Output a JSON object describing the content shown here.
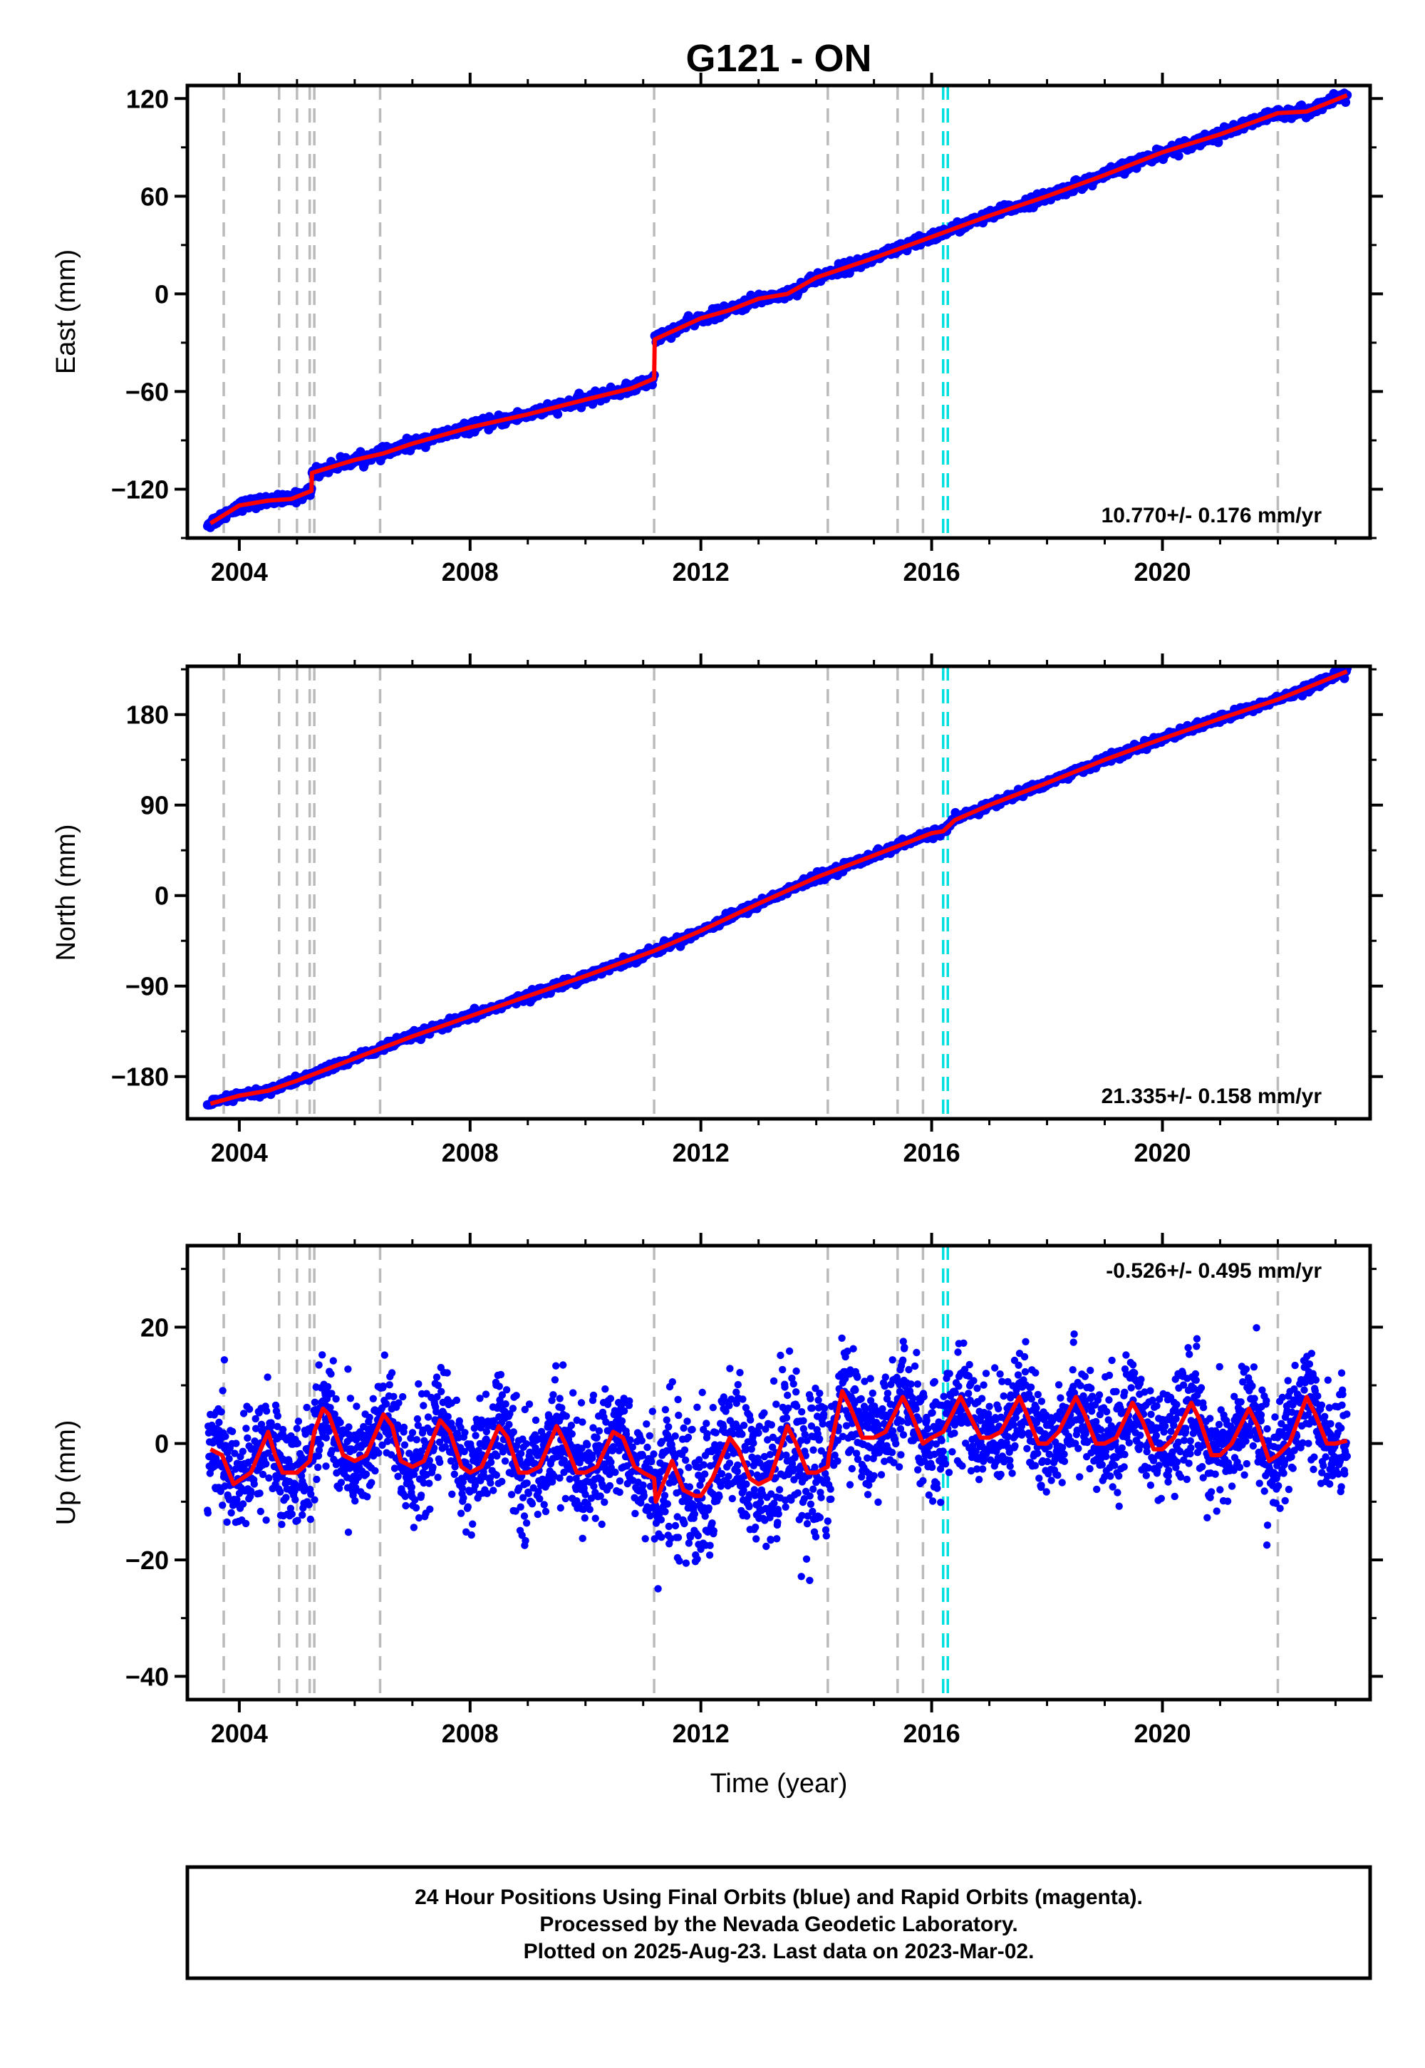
{
  "chart_data": {
    "type": "scatter",
    "title": "G121 - ON",
    "xlabel": "Time (year)",
    "xlim": [
      2003.1,
      2023.6
    ],
    "x_ticks": [
      "2004",
      "2008",
      "2012",
      "2016",
      "2020"
    ],
    "grid": false,
    "event_lines": {
      "gray_dashed": [
        2003.73,
        2004.69,
        2005.0,
        2005.22,
        2005.3,
        2006.44,
        2011.19,
        2014.2,
        2015.41,
        2015.85,
        2022.0
      ],
      "cyan_dashed": [
        2016.2,
        2016.28
      ]
    },
    "colors": {
      "final_orbits": "#0000ff",
      "model": "#ff0000",
      "events": "#bbbbbb",
      "events_alt": "#00e0e0"
    },
    "panels": [
      {
        "name": "east",
        "ylabel": "East (mm)",
        "ylim": [
          -150,
          128
        ],
        "y_ticks": [
          "−120",
          "−60",
          "0",
          "60",
          "120"
        ],
        "rate_label": "10.770+/- 0.176 mm/yr",
        "model": {
          "x": [
            2003.5,
            2004.0,
            2004.5,
            2004.9,
            2005.25,
            2005.26,
            2006.0,
            2006.5,
            2007.0,
            2008.0,
            2009.0,
            2010.0,
            2010.8,
            2011.19,
            2011.2,
            2012.0,
            2012.5,
            2013.0,
            2013.5,
            2014.0,
            2015.0,
            2016.0,
            2017.0,
            2018.0,
            2019.0,
            2020.0,
            2021.0,
            2022.0,
            2022.5,
            2023.2
          ],
          "y": [
            -141,
            -130,
            -127,
            -126,
            -121,
            -110,
            -102,
            -98,
            -92,
            -82,
            -74,
            -65,
            -58,
            -52,
            -28,
            -15,
            -10,
            -3,
            0,
            10,
            22,
            35,
            48,
            60,
            73,
            87,
            98,
            111,
            112,
            122
          ]
        }
      },
      {
        "name": "north",
        "ylabel": "North (mm)",
        "ylim": [
          -222,
          228
        ],
        "y_ticks": [
          "−180",
          "−90",
          "0",
          "90",
          "180"
        ],
        "rate_label": "21.335+/- 0.158 mm/yr",
        "model": {
          "x": [
            2003.5,
            2004.0,
            2004.5,
            2005.0,
            2006.0,
            2007.0,
            2008.0,
            2009.0,
            2010.0,
            2011.19,
            2012.0,
            2013.0,
            2014.0,
            2015.0,
            2016.0,
            2016.2,
            2016.4,
            2017.0,
            2018.0,
            2019.0,
            2020.0,
            2021.0,
            2022.0,
            2023.2
          ],
          "y": [
            -207,
            -199,
            -194,
            -184,
            -162,
            -140,
            -120,
            -100,
            -80,
            -55,
            -35,
            -8,
            18,
            40,
            62,
            64,
            75,
            90,
            112,
            135,
            156,
            176,
            195,
            223
          ]
        }
      },
      {
        "name": "up",
        "ylabel": "Up (mm)",
        "ylim": [
          -44,
          34
        ],
        "y_ticks": [
          "−40",
          "−20",
          "0",
          "20"
        ],
        "rate_label": "-0.526+/- 0.495 mm/yr",
        "model": {
          "x": [
            2003.5,
            2003.7,
            2003.9,
            2004.2,
            2004.5,
            2004.62,
            2004.75,
            2005.0,
            2005.22,
            2005.3,
            2005.45,
            2005.55,
            2005.8,
            2006.0,
            2006.2,
            2006.5,
            2006.65,
            2006.8,
            2007.0,
            2007.2,
            2007.48,
            2007.65,
            2007.85,
            2008.0,
            2008.2,
            2008.5,
            2008.65,
            2008.85,
            2009.0,
            2009.2,
            2009.5,
            2009.65,
            2009.85,
            2010.0,
            2010.2,
            2010.48,
            2010.65,
            2010.85,
            2011.0,
            2011.19,
            2011.22,
            2011.5,
            2011.7,
            2011.9,
            2012.0,
            2012.2,
            2012.5,
            2012.65,
            2012.85,
            2013.0,
            2013.2,
            2013.5,
            2013.65,
            2013.85,
            2014.0,
            2014.2,
            2014.22,
            2014.45,
            2014.6,
            2014.8,
            2015.0,
            2015.2,
            2015.5,
            2015.65,
            2015.85,
            2016.0,
            2016.2,
            2016.5,
            2016.65,
            2016.85,
            2017.0,
            2017.2,
            2017.52,
            2017.65,
            2017.85,
            2018.0,
            2018.2,
            2018.5,
            2018.65,
            2018.85,
            2019.0,
            2019.2,
            2019.48,
            2019.65,
            2019.85,
            2020.0,
            2020.2,
            2020.5,
            2020.65,
            2020.85,
            2021.0,
            2021.2,
            2021.5,
            2021.65,
            2021.85,
            2022.0,
            2022.2,
            2022.5,
            2022.65,
            2022.85,
            2023.0,
            2023.2
          ],
          "y": [
            -1,
            -2,
            -7,
            -5,
            2,
            -2,
            -5,
            -5,
            -3,
            2,
            6,
            5,
            -2,
            -3,
            -2,
            5,
            3,
            -3,
            -4,
            -3,
            4,
            2,
            -4,
            -5,
            -4,
            3,
            1,
            -5,
            -5,
            -4,
            3,
            0,
            -5,
            -5,
            -4,
            2,
            1,
            -4,
            -5,
            -6,
            -10,
            -3,
            -8,
            -9,
            -9,
            -6,
            1,
            -1,
            -6,
            -7,
            -6,
            3,
            0,
            -5,
            -5,
            -4,
            -2,
            9,
            6,
            1,
            1,
            2,
            8,
            5,
            0,
            1,
            2,
            8,
            5,
            1,
            1,
            2,
            8,
            5,
            0,
            0,
            2,
            8,
            5,
            0,
            0,
            1,
            7,
            4,
            -1,
            -1,
            1,
            7,
            4,
            -2,
            -2,
            0,
            6,
            3,
            -3,
            -2,
            0,
            8,
            5,
            0,
            0,
            0.5
          ]
        }
      }
    ]
  },
  "footer": {
    "line1": "24 Hour Positions Using Final Orbits (blue) and Rapid Orbits (magenta).",
    "line2": "Processed by the Nevada Geodetic Laboratory.",
    "line3": "Plotted on 2025-Aug-23. Last data on 2023-Mar-02."
  }
}
